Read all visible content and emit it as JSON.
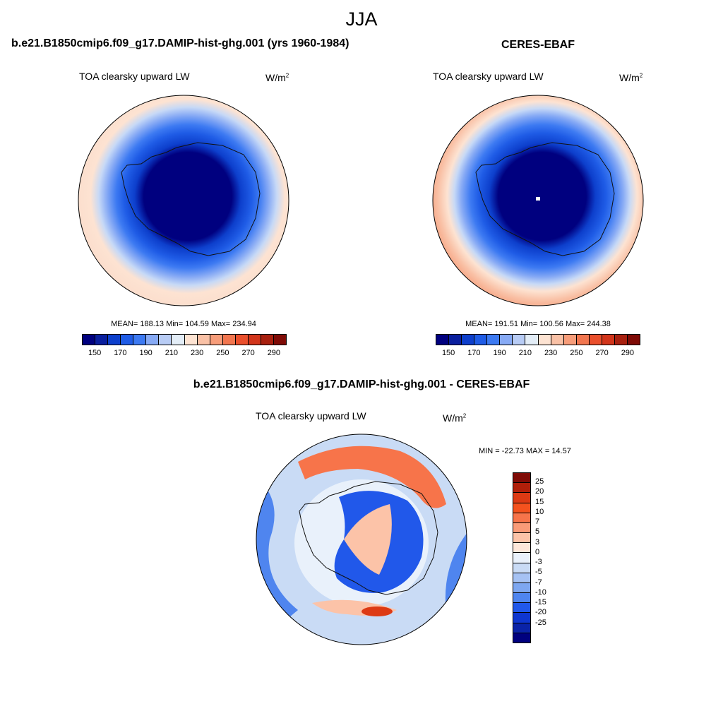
{
  "figure": {
    "season": "JJA"
  },
  "panels": [
    {
      "title": "b.e21.B1850cmip6.f09_g17.DAMIP-hist-ghg.001 (yrs 1960-1984)",
      "variable": "TOA clearsky upward LW",
      "units_base": "W/m",
      "units_exp": "2",
      "stats": "MEAN= 188.13  Min= 104.59  Max= 234.94",
      "mean": 188.13,
      "min": 104.59,
      "max": 234.94,
      "colorbar": {
        "colors": [
          "#00007f",
          "#0a1f9e",
          "#0d3fcc",
          "#1f5ce6",
          "#3d7af2",
          "#87aaf5",
          "#b8ccf5",
          "#e3edf7",
          "#fde3d2",
          "#f9c1a6",
          "#f79d7a",
          "#f2764f",
          "#ea4f2c",
          "#d2351b",
          "#a8200f",
          "#7f0b06"
        ],
        "tick_labels": [
          "150",
          "170",
          "190",
          "210",
          "230",
          "250",
          "270",
          "290"
        ]
      }
    },
    {
      "title": "CERES-EBAF",
      "variable": "TOA clearsky upward LW",
      "units_base": "W/m",
      "units_exp": "2",
      "stats": "MEAN= 191.51  Min= 100.56  Max= 244.38",
      "mean": 191.51,
      "min": 100.56,
      "max": 244.38,
      "colorbar": {
        "colors": [
          "#00007f",
          "#0a1f9e",
          "#0d3fcc",
          "#1f5ce6",
          "#3d7af2",
          "#87aaf5",
          "#b8ccf5",
          "#e3edf7",
          "#fde3d2",
          "#f9c1a6",
          "#f79d7a",
          "#f2764f",
          "#ea4f2c",
          "#d2351b",
          "#a8200f",
          "#7f0b06"
        ],
        "tick_labels": [
          "150",
          "170",
          "190",
          "210",
          "230",
          "250",
          "270",
          "290"
        ]
      }
    }
  ],
  "difference": {
    "title": "b.e21.B1850cmip6.f09_g17.DAMIP-hist-ghg.001 - CERES-EBAF",
    "variable": "TOA clearsky upward LW",
    "units_base": "W/m",
    "units_exp": "2",
    "stats": "MIN = -22.73 MAX =  14.57",
    "min": -22.73,
    "max": 14.57,
    "colorbar": {
      "colors_top_to_bottom": [
        "#7f0b06",
        "#b01f0a",
        "#dd3a14",
        "#f4521e",
        "#f7744a",
        "#f99b78",
        "#fcc3a8",
        "#fde7da",
        "#e9f1fb",
        "#c9dbf5",
        "#a6c2f3",
        "#7ea7f0",
        "#4f85ef",
        "#2158ea",
        "#0e36d0",
        "#0a23a8",
        "#00007f"
      ],
      "tick_labels": [
        "25",
        "20",
        "15",
        "10",
        "7",
        "5",
        "3",
        "0",
        "-3",
        "-5",
        "-7",
        "-10",
        "-15",
        "-20",
        "-25"
      ]
    }
  }
}
